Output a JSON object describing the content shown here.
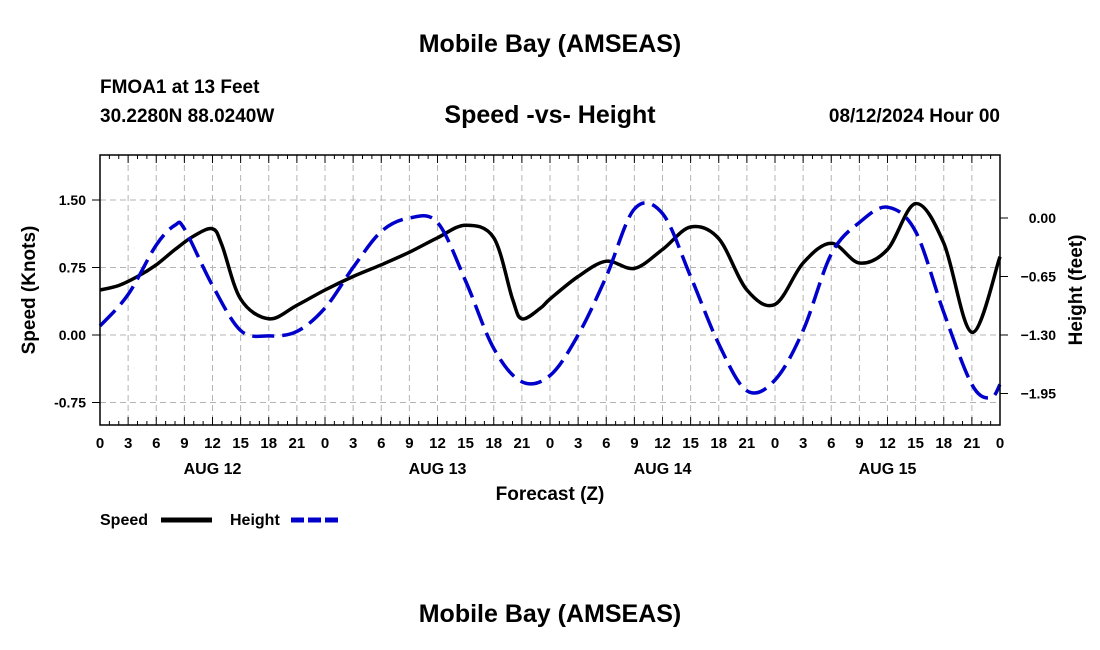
{
  "header": {
    "title": "Mobile Bay (AMSEAS)",
    "station": "FMOA1 at 13 Feet",
    "coords": "30.2280N  88.0240W",
    "subtitle": "Speed -vs- Height",
    "datetime": "08/12/2024 Hour 00"
  },
  "footer": {
    "title": "Mobile Bay (AMSEAS)"
  },
  "colors": {
    "speed": "#000000",
    "height": "#0000cc",
    "grid": "#b4b4b4"
  },
  "chart_data": {
    "type": "line",
    "xlabel": "Forecast (Z)",
    "ylabel": "Speed (Knots)",
    "y2label": "Height (feet)",
    "xlim": [
      0,
      96
    ],
    "ylim": [
      -1.0,
      2.0
    ],
    "y2lim": [
      -2.3,
      0.7
    ],
    "x_ticks": [
      0,
      3,
      6,
      9,
      12,
      15,
      18,
      21,
      24,
      27,
      30,
      33,
      36,
      39,
      42,
      45,
      48,
      51,
      54,
      57,
      60,
      63,
      66,
      69,
      72,
      75,
      78,
      81,
      84,
      87,
      90,
      93,
      96
    ],
    "x_tick_labels": [
      "0",
      "3",
      "6",
      "9",
      "12",
      "15",
      "18",
      "21",
      "0",
      "3",
      "6",
      "9",
      "12",
      "15",
      "18",
      "21",
      "0",
      "3",
      "6",
      "9",
      "12",
      "15",
      "18",
      "21",
      "0",
      "3",
      "6",
      "9",
      "12",
      "15",
      "18",
      "21",
      "0"
    ],
    "day_labels": [
      {
        "hour": 12,
        "label": "AUG 12"
      },
      {
        "hour": 36,
        "label": "AUG 13"
      },
      {
        "hour": 60,
        "label": "AUG 14"
      },
      {
        "hour": 84,
        "label": "AUG 15"
      }
    ],
    "y_ticks": [
      1.5,
      0.75,
      0.0,
      -0.75
    ],
    "y_tick_labels": [
      "1.50",
      "0.75",
      "0.00",
      "-0.75"
    ],
    "y2_ticks": [
      0.0,
      -0.65,
      -1.3,
      -1.95
    ],
    "y2_tick_labels": [
      "0.00",
      "−0.65",
      "−1.30",
      "−1.95"
    ],
    "series": [
      {
        "name": "Speed",
        "axis": "left",
        "style": "solid",
        "x": [
          0,
          2,
          4,
          6,
          8,
          10,
          12,
          13,
          15,
          18,
          21,
          24,
          27,
          30,
          33,
          36,
          39,
          42,
          44,
          45,
          47,
          48,
          51,
          54,
          57,
          60,
          63,
          66,
          69,
          72,
          75,
          78,
          81,
          84,
          87,
          90,
          93,
          96
        ],
        "values": [
          0.5,
          0.55,
          0.65,
          0.78,
          0.95,
          1.1,
          1.18,
          1.0,
          0.4,
          0.18,
          0.33,
          0.5,
          0.65,
          0.78,
          0.92,
          1.08,
          1.22,
          1.08,
          0.4,
          0.18,
          0.3,
          0.4,
          0.65,
          0.82,
          0.74,
          0.95,
          1.2,
          1.07,
          0.5,
          0.34,
          0.8,
          1.02,
          0.8,
          0.95,
          1.46,
          1.02,
          0.03,
          0.87
        ]
      },
      {
        "name": "Height",
        "axis": "right",
        "style": "dashed",
        "x": [
          0,
          3,
          6,
          8,
          9,
          12,
          15,
          18,
          21,
          24,
          27,
          30,
          33,
          36,
          39,
          42,
          45,
          48,
          51,
          54,
          57,
          60,
          63,
          66,
          69,
          72,
          75,
          78,
          81,
          84,
          87,
          90,
          93,
          95,
          96
        ],
        "values": [
          -1.2,
          -0.85,
          -0.3,
          -0.08,
          -0.12,
          -0.75,
          -1.25,
          -1.31,
          -1.26,
          -1.0,
          -0.55,
          -0.15,
          0.0,
          -0.05,
          -0.7,
          -1.45,
          -1.82,
          -1.75,
          -1.3,
          -0.65,
          0.1,
          0.05,
          -0.65,
          -1.4,
          -1.92,
          -1.8,
          -1.25,
          -0.4,
          -0.05,
          0.12,
          -0.15,
          -1.05,
          -1.85,
          -2.0,
          -1.85
        ]
      }
    ],
    "legend": [
      {
        "label": "Speed",
        "style": "solid"
      },
      {
        "label": "Height",
        "style": "dashed"
      }
    ]
  }
}
